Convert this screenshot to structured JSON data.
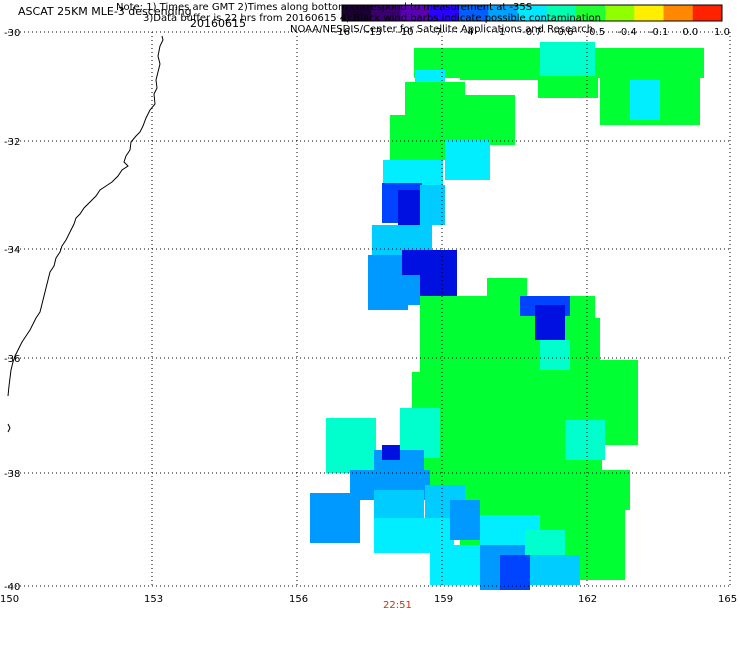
{
  "header": {
    "title": "ASCAT 25KM MLE-3 descending",
    "date": "20160615"
  },
  "colorbar": {
    "labels": [
      "-16",
      "-13",
      "-10",
      "-7",
      "-4",
      "-1",
      "-0.7",
      "-0.6",
      "-0.5",
      "-0.4",
      "-0.1",
      "0.0",
      "1.0"
    ],
    "colors": [
      "#1a0033",
      "#3a0070",
      "#5a00b0",
      "#2a00ff",
      "#0060ff",
      "#00a0ff",
      "#00e8ff",
      "#00ffb0",
      "#20ff30",
      "#90ff00",
      "#ffee00",
      "#ff8800",
      "#ff2200"
    ]
  },
  "map": {
    "lat_labels": [
      "-30",
      "-32",
      "-34",
      "-36",
      "-38",
      "-40"
    ],
    "lon_labels": [
      "150",
      "153",
      "156",
      "159",
      "162",
      "165"
    ],
    "time_label": "22:51",
    "data_colors": {
      "green": "#00ff33",
      "aqua": "#00ffcc",
      "cyan": "#00eeff",
      "light_blue": "#00ccff",
      "mid_blue": "#0099ff",
      "blue": "#0044ff",
      "deep_blue": "#0010e0"
    }
  },
  "notes": {
    "line1": "Note: 1) Times are GMT 2)Times along bottom correspond to measurement at -35S",
    "line2": "3)Data buffer is 22 hrs from 20160615 4) Black wind barbs indicate possible contamination",
    "line3": "NOAA/NESDIS/Center for Satellite Applications and Research"
  }
}
